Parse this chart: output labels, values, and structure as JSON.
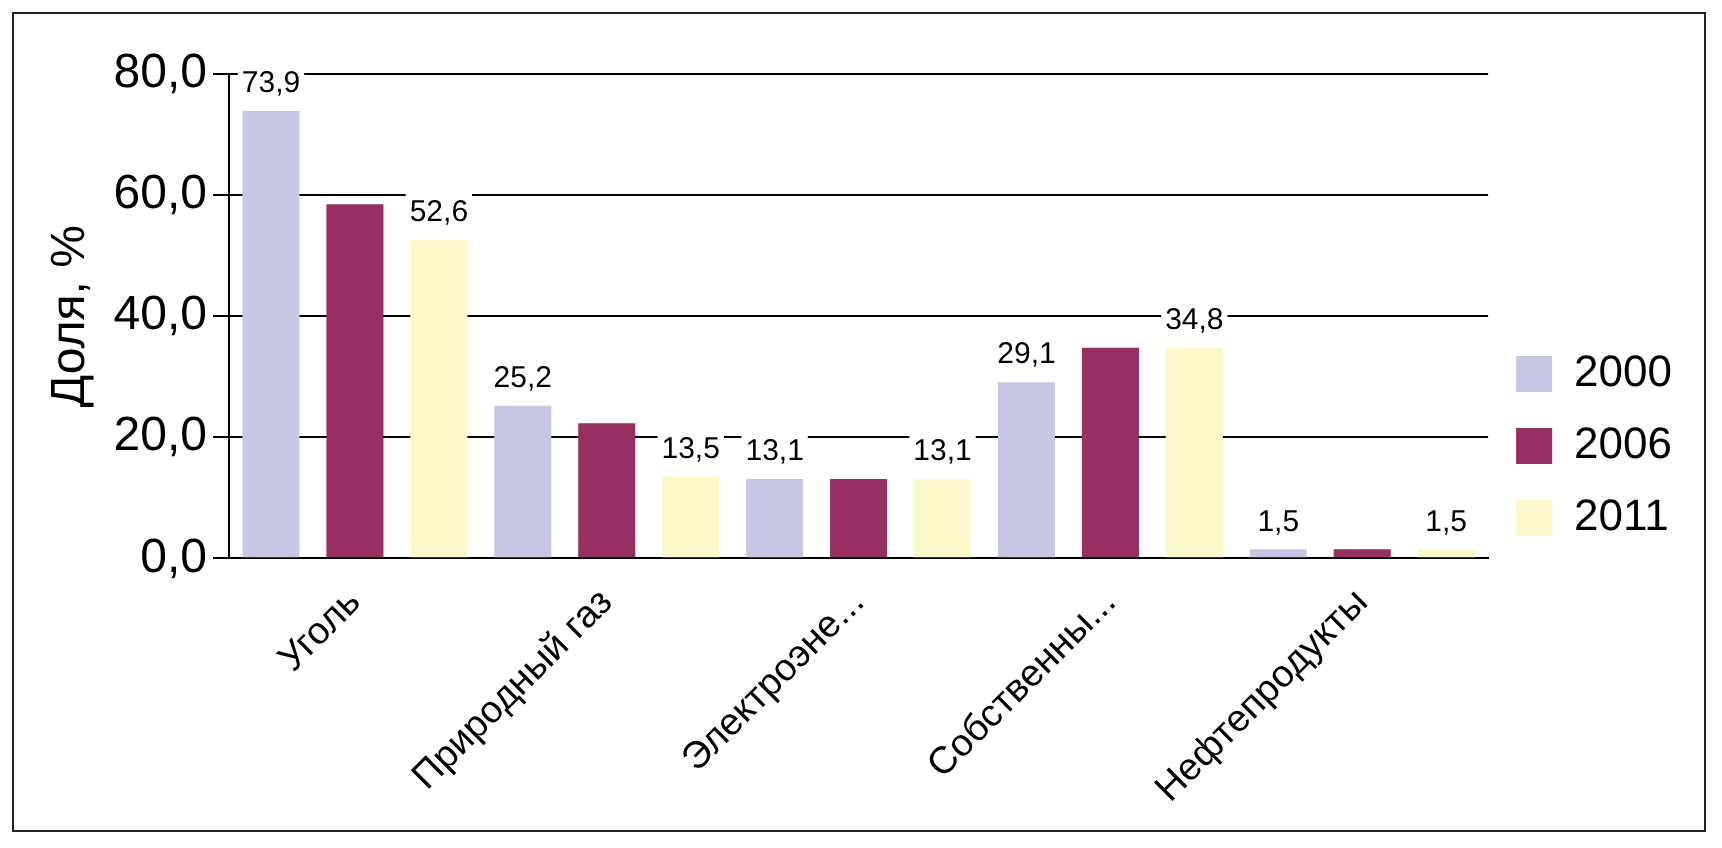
{
  "chart_data": {
    "type": "bar",
    "ylabel": "Доля, %",
    "categories": [
      "Уголь",
      "Природный газ",
      "Электроэне...",
      "Собственны...",
      "Нефтепродукты"
    ],
    "series": [
      {
        "name": "2000",
        "color": "#c8c8e4",
        "values": [
          73.9,
          25.2,
          13.1,
          29.1,
          1.5
        ],
        "value_labels": [
          "73,9",
          "25,2",
          "13,1",
          "29,1",
          "1,5"
        ]
      },
      {
        "name": "2006",
        "color": "#953060",
        "values": [
          58.5,
          22.3,
          13.1,
          34.8,
          1.5
        ]
      },
      {
        "name": "2011",
        "color": "#fbf8cc",
        "values": [
          52.6,
          13.5,
          13.1,
          34.8,
          1.5
        ],
        "value_labels": [
          "52,6",
          "13,5",
          "13,1",
          "34,8",
          "1,5"
        ]
      }
    ],
    "ylim": [
      0,
      80
    ],
    "yticks": [
      {
        "value": 0,
        "label": "0,0"
      },
      {
        "value": 20,
        "label": "20,0"
      },
      {
        "value": 40,
        "label": "40,0"
      },
      {
        "value": 60,
        "label": "60,0"
      },
      {
        "value": 80,
        "label": "80,0"
      }
    ],
    "grid": "y",
    "legend": "right"
  }
}
